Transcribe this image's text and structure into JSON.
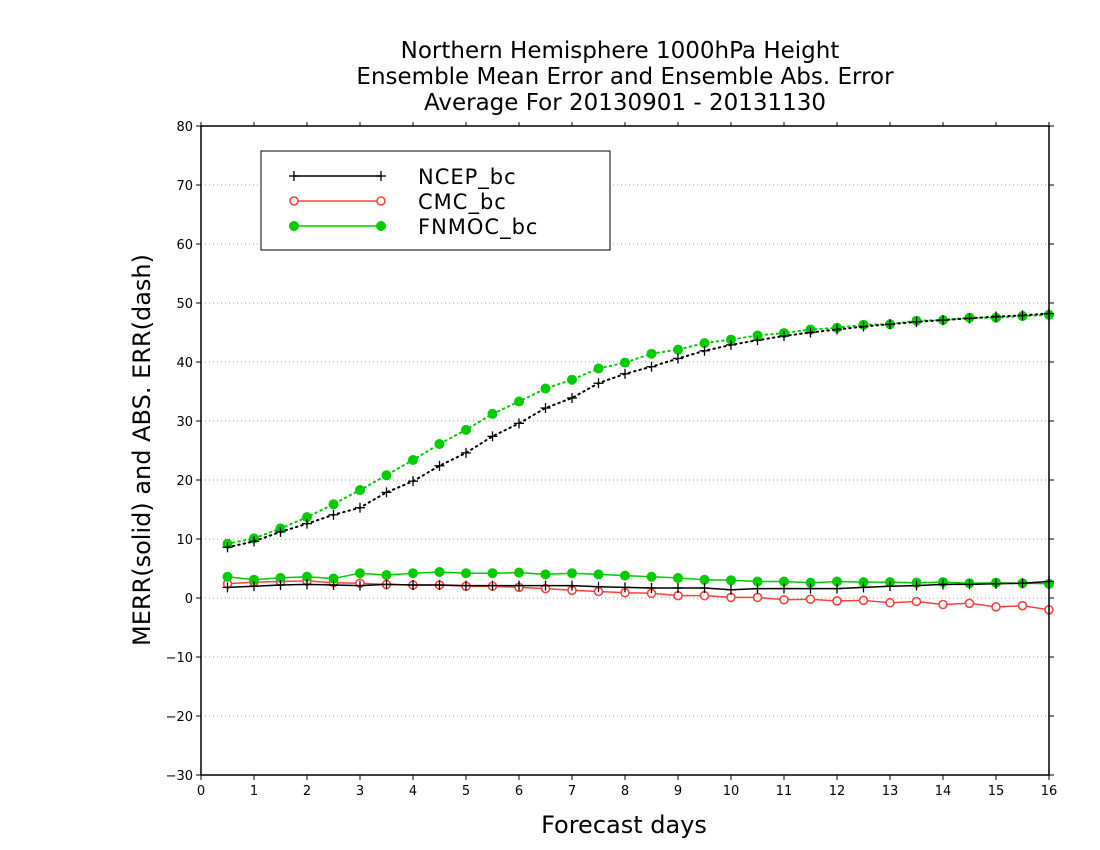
{
  "chart_data": {
    "type": "line",
    "title": [
      "Northern Hemisphere 1000hPa Height",
      "Ensemble Mean Error and Ensemble Abs. Error",
      "Average For 20130901 - 20131130"
    ],
    "xlabel": "Forecast days",
    "ylabel": "MERR(solid) and ABS. ERR(dash)",
    "xlim": [
      0,
      16
    ],
    "ylim": [
      -30,
      80
    ],
    "xticks": [
      0,
      1,
      2,
      3,
      4,
      5,
      6,
      7,
      8,
      9,
      10,
      11,
      12,
      13,
      14,
      15,
      16
    ],
    "yticks": [
      -30,
      -20,
      -10,
      0,
      10,
      20,
      30,
      40,
      50,
      60,
      70,
      80
    ],
    "grid": "horizontal dotted",
    "legend_position": "top-left",
    "x": [
      0.5,
      1,
      1.5,
      2,
      2.5,
      3,
      3.5,
      4,
      4.5,
      5,
      5.5,
      6,
      6.5,
      7,
      7.5,
      8,
      8.5,
      9,
      9.5,
      10,
      10.5,
      11,
      11.5,
      12,
      12.5,
      13,
      13.5,
      14,
      14.5,
      15,
      15.5,
      16
    ],
    "series": [
      {
        "name": "NCEP_bc",
        "color": "#000000",
        "marker": "plus",
        "merr": [
          1.8,
          2,
          2.2,
          2.3,
          2.2,
          2.1,
          2.3,
          2.2,
          2.2,
          2.1,
          2.1,
          2.1,
          2.1,
          2.1,
          1.9,
          1.8,
          1.7,
          1.7,
          1.7,
          1.4,
          1.6,
          1.6,
          1.6,
          1.6,
          1.8,
          2,
          2.1,
          2.3,
          2.3,
          2.4,
          2.5,
          2.8
        ],
        "abs_err": [
          8.6,
          9.6,
          11.2,
          12.6,
          14.1,
          15.3,
          17.9,
          19.8,
          22.4,
          24.6,
          27.4,
          29.6,
          32.2,
          33.9,
          36.4,
          38,
          39.2,
          40.6,
          41.9,
          42.9,
          43.7,
          44.4,
          45,
          45.5,
          46,
          46.4,
          46.8,
          47.1,
          47.4,
          47.7,
          47.9,
          48.2
        ]
      },
      {
        "name": "CMC_bc",
        "color": "#ff4040",
        "marker": "open-circle",
        "merr": [
          2.4,
          2.7,
          2.8,
          2.9,
          2.6,
          2.5,
          2.3,
          2.2,
          2.2,
          2,
          2,
          1.8,
          1.6,
          1.3,
          1.1,
          0.9,
          0.8,
          0.4,
          0.4,
          0.1,
          0.1,
          -0.3,
          -0.2,
          -0.5,
          -0.4,
          -0.8,
          -0.6,
          -1.1,
          -0.9,
          -1.5,
          -1.3,
          -2
        ]
      },
      {
        "name": "FNMOC_bc",
        "color": "#00cc00",
        "marker": "filled-circle",
        "merr": [
          3.6,
          3.1,
          3.4,
          3.6,
          3.3,
          4.2,
          3.9,
          4.2,
          4.4,
          4.2,
          4.2,
          4.3,
          4,
          4.2,
          4,
          3.8,
          3.6,
          3.4,
          3.1,
          3,
          2.8,
          2.8,
          2.6,
          2.8,
          2.7,
          2.7,
          2.6,
          2.7,
          2.5,
          2.6,
          2.5,
          2.4
        ],
        "abs_err": [
          9.2,
          10.1,
          11.8,
          13.7,
          15.9,
          18.3,
          20.8,
          23.4,
          26.1,
          28.5,
          31.2,
          33.3,
          35.5,
          37,
          38.9,
          39.9,
          41.4,
          42.1,
          43.2,
          43.8,
          44.5,
          44.9,
          45.5,
          45.8,
          46.3,
          46.4,
          47,
          47.1,
          47.5,
          47.5,
          47.8,
          48
        ]
      }
    ]
  }
}
